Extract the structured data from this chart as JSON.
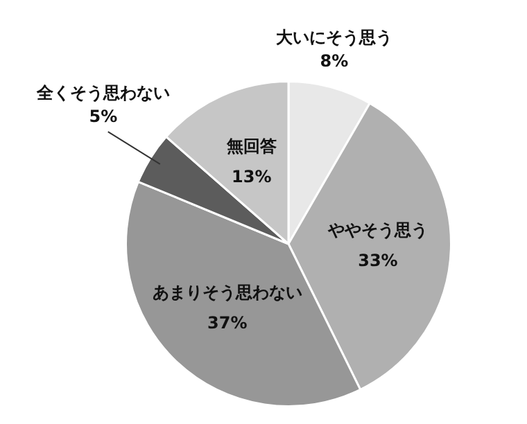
{
  "chart_data": {
    "type": "pie",
    "categories": [
      "大いにそう思う",
      "ややそう思う",
      "あまりそう思わない",
      "全くそう思わない",
      "無回答"
    ],
    "values": [
      8,
      33,
      37,
      5,
      13
    ],
    "value_labels": [
      "8%",
      "33%",
      "37%",
      "5%",
      "13%"
    ],
    "colors": [
      "#e8e8e8",
      "#b0b0b0",
      "#979797",
      "#5c5c5c",
      "#c6c6c6"
    ],
    "legend": false
  }
}
